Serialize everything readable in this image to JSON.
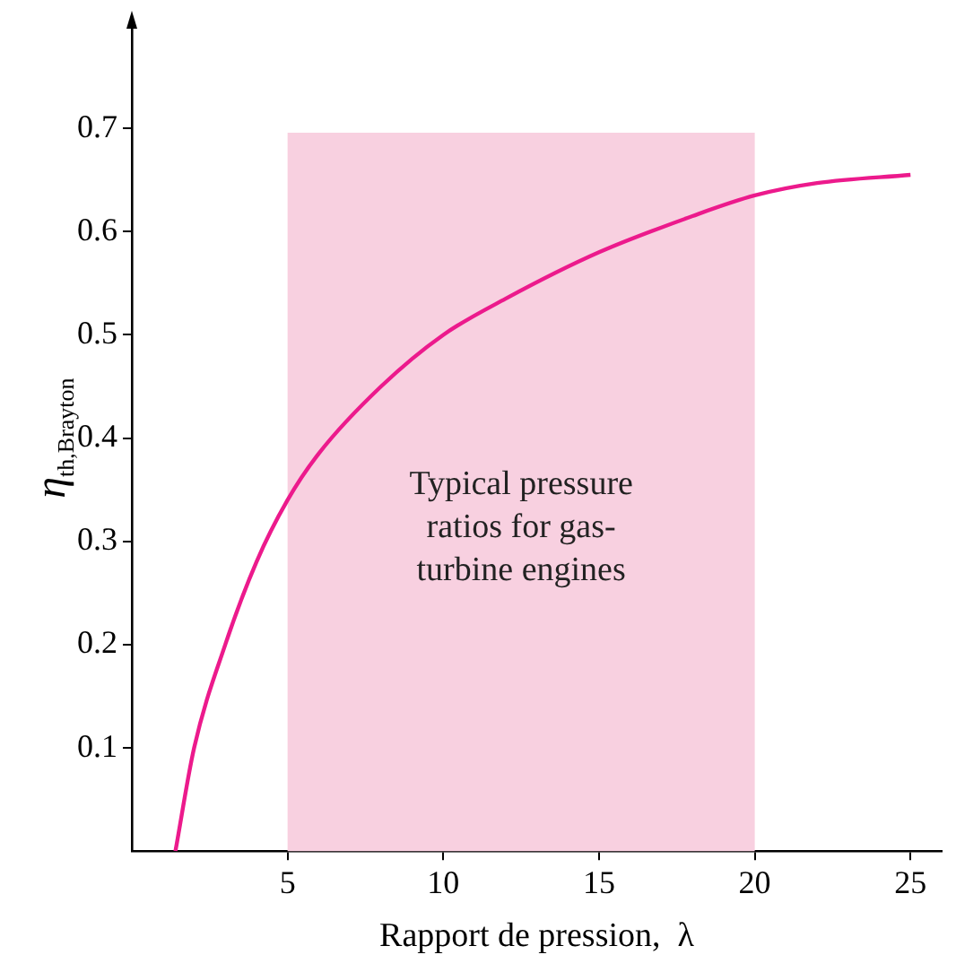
{
  "chart_data": {
    "type": "line",
    "xlabel": "Rapport de pression,  λ",
    "ylabel": "η$_{th,Brayton}$",
    "x": [
      1.4,
      2,
      3,
      4,
      5,
      6,
      8,
      10,
      12,
      15,
      18,
      20,
      22,
      25
    ],
    "series": [
      {
        "color": "#ec1a8c",
        "values": [
          0,
          0.1,
          0.2,
          0.28,
          0.34,
          0.385,
          0.45,
          0.5,
          0.535,
          0.58,
          0.615,
          0.635,
          0.647,
          0.655
        ]
      }
    ],
    "xlim": [
      0,
      26
    ],
    "xticks": [
      5,
      10,
      15,
      20,
      25
    ],
    "ylim": [
      0,
      0.8
    ],
    "yticks": [
      0.1,
      0.2,
      0.3,
      0.4,
      0.5,
      0.6,
      0.7
    ],
    "bands": [
      {
        "axis": "x",
        "from": 5,
        "to": 20,
        "label": "Typical pressure\nratios for gas-\nturbine engines",
        "color": "#f8d0e0"
      }
    ],
    "grid": false,
    "legend": false,
    "marker": "none",
    "line_style": "solid"
  }
}
